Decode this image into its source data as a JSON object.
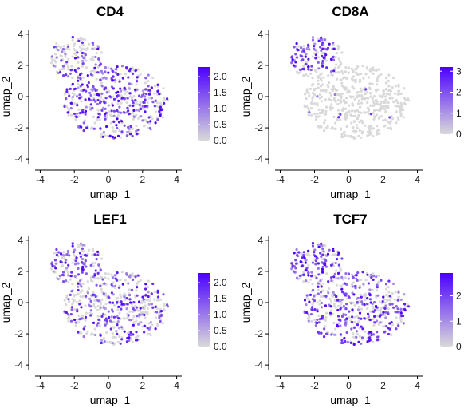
{
  "chart_data": [
    {
      "type": "scatter",
      "title": "CD4",
      "xlabel": "umap_1",
      "ylabel": "umap_2",
      "xlim": [
        -4.3,
        4.3
      ],
      "ylim": [
        -4.3,
        4.3
      ],
      "x_ticks": [
        -4,
        -2,
        0,
        2,
        4
      ],
      "y_ticks": [
        -4,
        -2,
        0,
        2,
        4
      ],
      "legend": {
        "position": "right",
        "min": 0,
        "max": 2.3,
        "ticks": [
          0.0,
          0.5,
          1.0,
          1.5,
          2.0
        ],
        "tick_labels": [
          "0.0",
          "0.5",
          "1.0",
          "1.5",
          "2.0"
        ]
      },
      "expression_pattern": "broad, weaker in upper-left cluster"
    },
    {
      "type": "scatter",
      "title": "CD8A",
      "xlabel": "umap_1",
      "ylabel": "umap_2",
      "xlim": [
        -4.3,
        4.3
      ],
      "ylim": [
        -4.3,
        4.3
      ],
      "x_ticks": [
        -4,
        -2,
        0,
        2,
        4
      ],
      "y_ticks": [
        -4,
        -2,
        0,
        2,
        4
      ],
      "legend": {
        "position": "right",
        "min": 0,
        "max": 3.2,
        "ticks": [
          0,
          1,
          2,
          3
        ],
        "tick_labels": [
          "0",
          "1",
          "2",
          "3"
        ]
      },
      "expression_pattern": "concentrated in upper-left cluster, sparse elsewhere"
    },
    {
      "type": "scatter",
      "title": "LEF1",
      "xlabel": "umap_1",
      "ylabel": "umap_2",
      "xlim": [
        -4.3,
        4.3
      ],
      "ylim": [
        -4.3,
        4.3
      ],
      "x_ticks": [
        -4,
        -2,
        0,
        2,
        4
      ],
      "y_ticks": [
        -4,
        -2,
        0,
        2,
        4
      ],
      "legend": {
        "position": "right",
        "min": 0,
        "max": 2.3,
        "ticks": [
          0.0,
          0.5,
          1.0,
          1.5,
          2.0
        ],
        "tick_labels": [
          "0.0",
          "0.5",
          "1.0",
          "1.5",
          "2.0"
        ]
      },
      "expression_pattern": "broad, moderate"
    },
    {
      "type": "scatter",
      "title": "TCF7",
      "xlabel": "umap_1",
      "ylabel": "umap_2",
      "xlim": [
        -4.3,
        4.3
      ],
      "ylim": [
        -4.3,
        4.3
      ],
      "x_ticks": [
        -4,
        -2,
        0,
        2,
        4
      ],
      "y_ticks": [
        -4,
        -2,
        0,
        2,
        4
      ],
      "legend": {
        "position": "right",
        "min": 0,
        "max": 2.9,
        "ticks": [
          0,
          1,
          2
        ],
        "tick_labels": [
          "0",
          "1",
          "2"
        ]
      },
      "expression_pattern": "broad, strongest in upper-left cluster"
    }
  ],
  "colors": {
    "low": "#d9d9d9",
    "high": "#4b00ff"
  }
}
